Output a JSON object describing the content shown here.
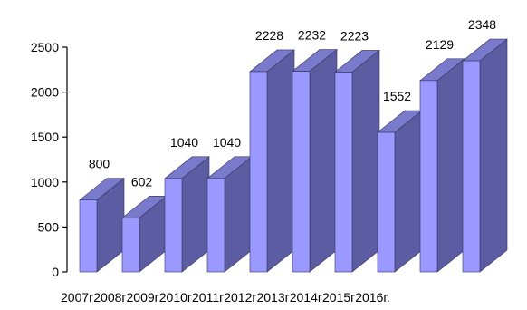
{
  "chart_data": {
    "type": "bar",
    "categories": [
      "2007г.",
      "2008г.",
      "2009г.",
      "2010г.",
      "2011г.",
      "2012г.",
      "2013г.",
      "2014г.",
      "2015г.",
      "2016г."
    ],
    "values": [
      800,
      602,
      1040,
      1040,
      2228,
      2232,
      2223,
      1552,
      2129,
      2348
    ],
    "data_labels": [
      "800",
      "602",
      "1040",
      "1040",
      "2228",
      "2232",
      "2223",
      "1552",
      "2129",
      "2348"
    ],
    "category_axis_text": "2007г2008г2009г2010г2011г2012г2013г2014г2015г2016г.",
    "title": "",
    "xlabel": "",
    "ylabel": "",
    "ylim": [
      0,
      2500
    ],
    "yticks": [
      0,
      500,
      1000,
      1500,
      2000,
      2500
    ],
    "grid": false,
    "legend": "none",
    "style": "3d-column",
    "colors": {
      "front": "#9999ff",
      "side": "#5c5ca3",
      "top": "#7a7acc",
      "edge": "#33335c"
    }
  }
}
